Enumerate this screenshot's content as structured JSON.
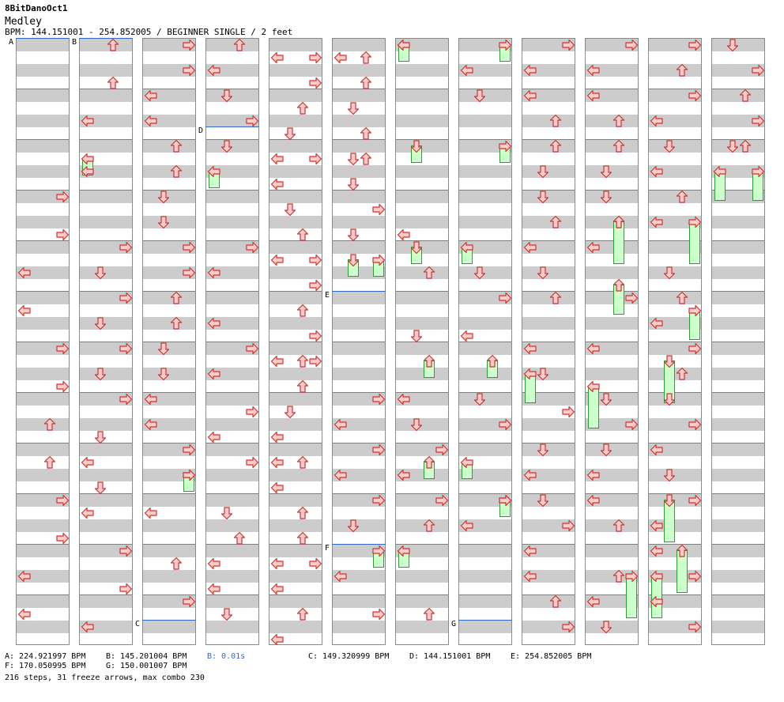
{
  "song": {
    "title": "8BitDanoOct1",
    "subtitle": "Medley",
    "info": "BPM: 144.151001 - 254.852005 / BEGINNER SINGLE / 2 feet"
  },
  "colors": {
    "arrow_fill": "#ffcccc",
    "arrow_stroke": "#cc3333",
    "hold_fill": "#ccffcc",
    "hold_stroke": "#339933",
    "bpm_marker": "#3366cc",
    "stop_text": "#3366cc"
  },
  "markers": [
    {
      "label": "A",
      "col": 0,
      "beat": 0
    },
    {
      "label": "B",
      "col": 1,
      "beat": 0
    },
    {
      "label": "C",
      "col": 2,
      "beat": 46
    },
    {
      "label": "D",
      "col": 3,
      "beat": 7
    },
    {
      "label": "E",
      "col": 5,
      "beat": 20
    },
    {
      "label": "F",
      "col": 5,
      "beat": 40
    },
    {
      "label": "G",
      "col": 7,
      "beat": 46
    }
  ],
  "notes": [
    [
      0,
      12,
      "right"
    ],
    [
      0,
      15,
      "right"
    ],
    [
      0,
      18,
      "left"
    ],
    [
      0,
      21,
      "left"
    ],
    [
      0,
      24,
      "right"
    ],
    [
      0,
      27,
      "right"
    ],
    [
      0,
      30,
      "up"
    ],
    [
      0,
      33,
      "up"
    ],
    [
      0,
      36,
      "right"
    ],
    [
      0,
      39,
      "right"
    ],
    [
      0,
      42,
      "left"
    ],
    [
      0,
      45,
      "left"
    ],
    [
      1,
      0,
      "up"
    ],
    [
      1,
      3,
      "up"
    ],
    [
      1,
      6,
      "left"
    ],
    [
      1,
      10,
      "left"
    ],
    [
      1,
      16,
      "right"
    ],
    [
      1,
      18,
      "down"
    ],
    [
      1,
      20,
      "right"
    ],
    [
      1,
      22,
      "down"
    ],
    [
      1,
      24,
      "right"
    ],
    [
      1,
      26,
      "down"
    ],
    [
      1,
      28,
      "right"
    ],
    [
      1,
      31,
      "down"
    ],
    [
      1,
      33,
      "left"
    ],
    [
      1,
      35,
      "down"
    ],
    [
      1,
      37,
      "left"
    ],
    [
      1,
      40,
      "right"
    ],
    [
      1,
      43,
      "right"
    ],
    [
      1,
      46,
      "left"
    ],
    [
      2,
      0,
      "right"
    ],
    [
      2,
      2,
      "right"
    ],
    [
      2,
      4,
      "left"
    ],
    [
      2,
      6,
      "left"
    ],
    [
      2,
      8,
      "up"
    ],
    [
      2,
      10,
      "up"
    ],
    [
      2,
      12,
      "down"
    ],
    [
      2,
      14,
      "down"
    ],
    [
      2,
      16,
      "right"
    ],
    [
      2,
      18,
      "right"
    ],
    [
      2,
      20,
      "up"
    ],
    [
      2,
      22,
      "up"
    ],
    [
      2,
      24,
      "down"
    ],
    [
      2,
      26,
      "down"
    ],
    [
      2,
      28,
      "left"
    ],
    [
      2,
      30,
      "left"
    ],
    [
      2,
      32,
      "right"
    ],
    [
      2,
      34,
      "right"
    ],
    [
      2,
      37,
      "left"
    ],
    [
      2,
      41,
      "up"
    ],
    [
      2,
      44,
      "right"
    ],
    [
      3,
      0,
      "up"
    ],
    [
      3,
      2,
      "left"
    ],
    [
      3,
      4,
      "down"
    ],
    [
      3,
      6,
      "right"
    ],
    [
      3,
      8,
      "down"
    ],
    [
      3,
      16,
      "right"
    ],
    [
      3,
      18,
      "left"
    ],
    [
      3,
      22,
      "left"
    ],
    [
      3,
      24,
      "right"
    ],
    [
      3,
      26,
      "left"
    ],
    [
      3,
      29,
      "right"
    ],
    [
      3,
      31,
      "left"
    ],
    [
      3,
      33,
      "right"
    ],
    [
      3,
      37,
      "down"
    ],
    [
      3,
      39,
      "up"
    ],
    [
      3,
      41,
      "left"
    ],
    [
      3,
      43,
      "left"
    ],
    [
      3,
      45,
      "down"
    ],
    [
      4,
      1,
      "left"
    ],
    [
      4,
      1,
      "right"
    ],
    [
      4,
      3,
      "right"
    ],
    [
      4,
      5,
      "up"
    ],
    [
      4,
      7,
      "down"
    ],
    [
      4,
      9,
      "left"
    ],
    [
      4,
      9,
      "right"
    ],
    [
      4,
      11,
      "left"
    ],
    [
      4,
      13,
      "down"
    ],
    [
      4,
      15,
      "up"
    ],
    [
      4,
      17,
      "left"
    ],
    [
      4,
      17,
      "right"
    ],
    [
      4,
      19,
      "right"
    ],
    [
      4,
      21,
      "up"
    ],
    [
      4,
      23,
      "right"
    ],
    [
      4,
      25,
      "left"
    ],
    [
      4,
      25,
      "up"
    ],
    [
      4,
      25,
      "right"
    ],
    [
      4,
      27,
      "up"
    ],
    [
      4,
      29,
      "down"
    ],
    [
      4,
      31,
      "left"
    ],
    [
      4,
      33,
      "left"
    ],
    [
      4,
      33,
      "up"
    ],
    [
      4,
      35,
      "left"
    ],
    [
      4,
      37,
      "up"
    ],
    [
      4,
      39,
      "up"
    ],
    [
      4,
      41,
      "left"
    ],
    [
      4,
      41,
      "right"
    ],
    [
      4,
      43,
      "left"
    ],
    [
      4,
      45,
      "up"
    ],
    [
      4,
      47,
      "left"
    ],
    [
      5,
      1,
      "left"
    ],
    [
      5,
      1,
      "up"
    ],
    [
      5,
      3,
      "up"
    ],
    [
      5,
      5,
      "down"
    ],
    [
      5,
      7,
      "up"
    ],
    [
      5,
      9,
      "down"
    ],
    [
      5,
      9,
      "up"
    ],
    [
      5,
      11,
      "down"
    ],
    [
      5,
      13,
      "right"
    ],
    [
      5,
      15,
      "down"
    ],
    [
      5,
      28,
      "right"
    ],
    [
      5,
      30,
      "left"
    ],
    [
      5,
      32,
      "right"
    ],
    [
      5,
      34,
      "left"
    ],
    [
      5,
      36,
      "right"
    ],
    [
      5,
      38,
      "down"
    ],
    [
      5,
      42,
      "left"
    ],
    [
      5,
      45,
      "right"
    ],
    [
      6,
      15,
      "left"
    ],
    [
      6,
      18,
      "up"
    ],
    [
      6,
      23,
      "down"
    ],
    [
      6,
      28,
      "left"
    ],
    [
      6,
      30,
      "down"
    ],
    [
      6,
      32,
      "right"
    ],
    [
      6,
      34,
      "left"
    ],
    [
      6,
      36,
      "right"
    ],
    [
      6,
      38,
      "up"
    ],
    [
      6,
      45,
      "up"
    ],
    [
      7,
      2,
      "left"
    ],
    [
      7,
      4,
      "down"
    ],
    [
      7,
      18,
      "down"
    ],
    [
      7,
      20,
      "right"
    ],
    [
      7,
      23,
      "left"
    ],
    [
      7,
      28,
      "down"
    ],
    [
      7,
      30,
      "right"
    ],
    [
      7,
      36,
      "right"
    ],
    [
      7,
      38,
      "left"
    ],
    [
      8,
      0,
      "right"
    ],
    [
      8,
      2,
      "left"
    ],
    [
      8,
      4,
      "left"
    ],
    [
      8,
      6,
      "up"
    ],
    [
      8,
      8,
      "up"
    ],
    [
      8,
      10,
      "down"
    ],
    [
      8,
      12,
      "down"
    ],
    [
      8,
      14,
      "up"
    ],
    [
      8,
      16,
      "left"
    ],
    [
      8,
      18,
      "down"
    ],
    [
      8,
      20,
      "up"
    ],
    [
      8,
      24,
      "left"
    ],
    [
      8,
      26,
      "down"
    ],
    [
      8,
      29,
      "right"
    ],
    [
      8,
      32,
      "down"
    ],
    [
      8,
      34,
      "left"
    ],
    [
      8,
      36,
      "down"
    ],
    [
      8,
      38,
      "right"
    ],
    [
      8,
      40,
      "left"
    ],
    [
      8,
      42,
      "left"
    ],
    [
      8,
      44,
      "up"
    ],
    [
      8,
      46,
      "right"
    ],
    [
      9,
      0,
      "right"
    ],
    [
      9,
      2,
      "left"
    ],
    [
      9,
      4,
      "left"
    ],
    [
      9,
      6,
      "up"
    ],
    [
      9,
      8,
      "up"
    ],
    [
      9,
      10,
      "down"
    ],
    [
      9,
      12,
      "down"
    ],
    [
      9,
      14,
      "up"
    ],
    [
      9,
      16,
      "left"
    ],
    [
      9,
      20,
      "right"
    ],
    [
      9,
      24,
      "left"
    ],
    [
      9,
      28,
      "down"
    ],
    [
      9,
      30,
      "right"
    ],
    [
      9,
      32,
      "down"
    ],
    [
      9,
      34,
      "left"
    ],
    [
      9,
      36,
      "left"
    ],
    [
      9,
      38,
      "up"
    ],
    [
      9,
      42,
      "up"
    ],
    [
      9,
      44,
      "left"
    ],
    [
      9,
      46,
      "down"
    ],
    [
      10,
      0,
      "right"
    ],
    [
      10,
      2,
      "up"
    ],
    [
      10,
      4,
      "right"
    ],
    [
      10,
      6,
      "left"
    ],
    [
      10,
      8,
      "down"
    ],
    [
      10,
      10,
      "left"
    ],
    [
      10,
      12,
      "up"
    ],
    [
      10,
      14,
      "left"
    ],
    [
      10,
      18,
      "down"
    ],
    [
      10,
      20,
      "up"
    ],
    [
      10,
      22,
      "left"
    ],
    [
      10,
      24,
      "right"
    ],
    [
      10,
      26,
      "up"
    ],
    [
      10,
      28,
      "down"
    ],
    [
      10,
      30,
      "right"
    ],
    [
      10,
      32,
      "left"
    ],
    [
      10,
      34,
      "down"
    ],
    [
      10,
      36,
      "right"
    ],
    [
      10,
      38,
      "left"
    ],
    [
      10,
      40,
      "left"
    ],
    [
      10,
      42,
      "right"
    ],
    [
      10,
      44,
      "left"
    ],
    [
      10,
      46,
      "right"
    ],
    [
      11,
      0,
      "down"
    ],
    [
      11,
      2,
      "right"
    ],
    [
      11,
      4,
      "up"
    ],
    [
      11,
      6,
      "right"
    ],
    [
      11,
      8,
      "down"
    ],
    [
      11,
      8,
      "up"
    ]
  ],
  "holds": [
    [
      1,
      9,
      10,
      "left"
    ],
    [
      2,
      34,
      35,
      "right"
    ],
    [
      3,
      10,
      11,
      "left"
    ],
    [
      5,
      17,
      18,
      "down"
    ],
    [
      5,
      17,
      18,
      "right"
    ],
    [
      5,
      40,
      41,
      "right"
    ],
    [
      6,
      0,
      1,
      "left"
    ],
    [
      6,
      8,
      9,
      "down"
    ],
    [
      6,
      16,
      17,
      "down"
    ],
    [
      6,
      25,
      26,
      "up"
    ],
    [
      6,
      33,
      34,
      "up"
    ],
    [
      6,
      40,
      41,
      "left"
    ],
    [
      7,
      0,
      1,
      "right"
    ],
    [
      7,
      8,
      9,
      "right"
    ],
    [
      7,
      16,
      17,
      "left"
    ],
    [
      7,
      25,
      26,
      "up"
    ],
    [
      7,
      33,
      34,
      "left"
    ],
    [
      7,
      36,
      37,
      "right"
    ],
    [
      8,
      26,
      28,
      "left"
    ],
    [
      9,
      14,
      17,
      "up"
    ],
    [
      9,
      19,
      21,
      "up"
    ],
    [
      9,
      27,
      30,
      "left"
    ],
    [
      9,
      42,
      45,
      "right"
    ],
    [
      10,
      14,
      17,
      "right"
    ],
    [
      10,
      21,
      23,
      "right"
    ],
    [
      10,
      25,
      28,
      "down"
    ],
    [
      10,
      36,
      39,
      "down"
    ],
    [
      10,
      40,
      43,
      "up"
    ],
    [
      10,
      42,
      45,
      "left"
    ],
    [
      11,
      10,
      12,
      "left"
    ],
    [
      11,
      10,
      12,
      "right"
    ]
  ],
  "footer": {
    "a": "A: 224.921997 BPM",
    "b": "B: 145.201004 BPM",
    "stop": "B: 0.01s",
    "c": "C: 149.320999 BPM",
    "d": "D: 144.151001 BPM",
    "e": "E: 254.852005 BPM",
    "f": "F: 170.050995 BPM",
    "g": "G: 150.001007 BPM",
    "summary": "216 steps, 31 freeze arrows, max combo 230"
  }
}
